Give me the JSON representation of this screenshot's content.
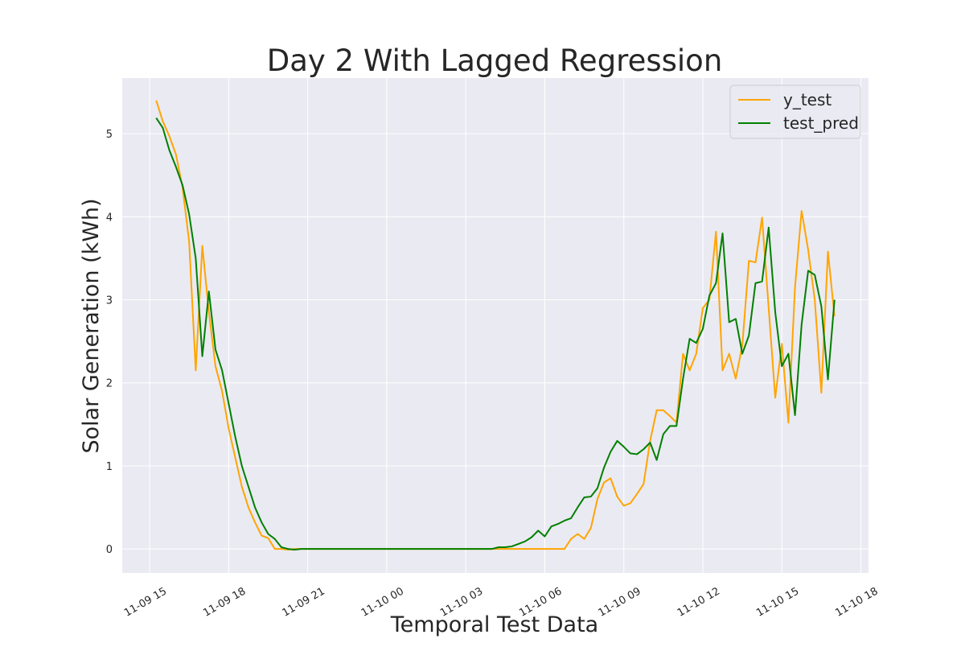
{
  "chart_data": {
    "type": "line",
    "title": "Day 2 With Lagged Regression",
    "x_label": "Temporal Test Data",
    "y_label": "Solar Generation (kWh)",
    "x": [
      15.25,
      15.5,
      15.75,
      16,
      16.25,
      16.5,
      16.75,
      17,
      17.25,
      17.5,
      17.75,
      18,
      18.25,
      18.5,
      18.75,
      19,
      19.25,
      19.5,
      19.75,
      20,
      20.25,
      20.5,
      20.75,
      21,
      21.25,
      21.5,
      21.75,
      22,
      22.25,
      22.5,
      22.75,
      23,
      23.25,
      23.5,
      23.75,
      24,
      24.25,
      24.5,
      24.75,
      25,
      25.25,
      25.5,
      25.75,
      26,
      26.25,
      26.5,
      26.75,
      27,
      27.25,
      27.5,
      27.75,
      28,
      28.25,
      28.5,
      28.75,
      29,
      29.25,
      29.5,
      29.75,
      30,
      30.25,
      30.5,
      30.75,
      31,
      31.25,
      31.5,
      31.75,
      32,
      32.25,
      32.5,
      32.75,
      33,
      33.25,
      33.5,
      33.75,
      34,
      34.25,
      34.5,
      34.75,
      35,
      35.25,
      35.5,
      35.75,
      36,
      36.25,
      36.5,
      36.75,
      37,
      37.25,
      37.5,
      37.75,
      38,
      38.25,
      38.5,
      38.75,
      39,
      39.25,
      39.5,
      39.75,
      40,
      40.25,
      40.5,
      40.75,
      41
    ],
    "series": [
      {
        "name": "y_test",
        "color": "#ffa500",
        "values": [
          5.4,
          5.15,
          4.97,
          4.75,
          4.35,
          3.7,
          2.15,
          3.65,
          2.85,
          2.2,
          1.9,
          1.45,
          1.1,
          0.75,
          0.5,
          0.32,
          0.16,
          0.13,
          0,
          0,
          -0.01,
          0,
          0,
          0,
          0,
          0,
          0,
          0,
          0,
          0,
          0,
          0,
          0,
          0,
          0,
          0,
          0,
          0,
          0,
          0,
          0,
          0,
          0,
          0,
          0,
          0,
          0,
          0,
          0,
          0,
          0,
          0,
          0,
          0,
          0,
          0,
          0,
          0,
          0,
          0,
          0,
          0,
          0,
          0.12,
          0.18,
          0.12,
          0.25,
          0.6,
          0.8,
          0.85,
          0.63,
          0.52,
          0.55,
          0.66,
          0.78,
          1.3,
          1.67,
          1.67,
          1.6,
          1.52,
          2.35,
          2.15,
          2.35,
          2.9,
          3.0,
          3.82,
          2.15,
          2.35,
          2.05,
          2.45,
          3.47,
          3.45,
          3.99,
          2.9,
          1.82,
          2.47,
          1.52,
          3.15,
          4.07,
          3.6,
          3.0,
          1.88,
          3.58,
          2.8
        ]
      },
      {
        "name": "test_pred",
        "color": "#008000",
        "values": [
          5.19,
          5.07,
          4.8,
          4.6,
          4.38,
          4.03,
          3.5,
          2.32,
          3.1,
          2.4,
          2.15,
          1.75,
          1.35,
          1.0,
          0.75,
          0.5,
          0.32,
          0.18,
          0.12,
          0.02,
          0,
          -0.01,
          0,
          0,
          0,
          0,
          0,
          0,
          0,
          0,
          0,
          0,
          0,
          0,
          0,
          0,
          0,
          0,
          0,
          0,
          0,
          0,
          0,
          0,
          0,
          0,
          0,
          0,
          0,
          0,
          0,
          0,
          0.02,
          0.02,
          0.03,
          0.06,
          0.09,
          0.14,
          0.22,
          0.15,
          0.27,
          0.3,
          0.34,
          0.37,
          0.5,
          0.62,
          0.63,
          0.73,
          0.98,
          1.17,
          1.3,
          1.23,
          1.15,
          1.14,
          1.2,
          1.28,
          1.07,
          1.38,
          1.48,
          1.48,
          2.05,
          2.53,
          2.48,
          2.65,
          3.05,
          3.2,
          3.8,
          2.73,
          2.77,
          2.35,
          2.57,
          3.2,
          3.22,
          3.87,
          2.85,
          2.2,
          2.35,
          1.61,
          2.7,
          3.35,
          3.3,
          2.92,
          2.04,
          3.0
        ]
      }
    ],
    "xlim": [
      13.96,
      42.29
    ],
    "xticks": [
      {
        "value": 15,
        "label": "11-09 15"
      },
      {
        "value": 18,
        "label": "11-09 18"
      },
      {
        "value": 21,
        "label": "11-09 21"
      },
      {
        "value": 24,
        "label": "11-10 00"
      },
      {
        "value": 27,
        "label": "11-10 03"
      },
      {
        "value": 30,
        "label": "11-10 06"
      },
      {
        "value": 33,
        "label": "11-10 09"
      },
      {
        "value": 36,
        "label": "11-10 12"
      },
      {
        "value": 39,
        "label": "11-10 15"
      },
      {
        "value": 42,
        "label": "11-10 18"
      }
    ],
    "ylim": [
      -0.29,
      5.67
    ],
    "yticks": [
      0,
      1,
      2,
      3,
      4,
      5
    ],
    "grid": true,
    "legend": "upper right"
  }
}
